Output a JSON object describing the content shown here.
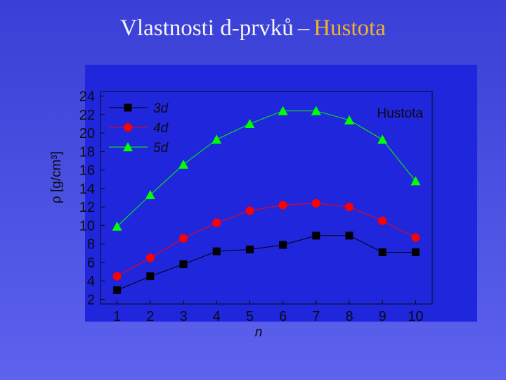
{
  "slide": {
    "title_main": "Vlastnosti d-prvků",
    "title_dash": "–",
    "title_accent": "Hustota"
  },
  "chart_data": {
    "type": "line",
    "title": "Hustota",
    "xlabel": "n",
    "ylabel": "ρ [g/cm³]",
    "x": [
      1,
      2,
      3,
      4,
      5,
      6,
      7,
      8,
      9,
      10
    ],
    "xlim": [
      0.5,
      10.5
    ],
    "ylim": [
      1.5,
      24.5
    ],
    "xticks": [
      1,
      2,
      3,
      4,
      5,
      6,
      7,
      8,
      9,
      10
    ],
    "yticks": [
      2,
      4,
      6,
      8,
      10,
      12,
      14,
      16,
      18,
      20,
      22,
      24
    ],
    "grid": false,
    "legend_position": "top-left",
    "series": [
      {
        "name": "3d",
        "color": "#000000",
        "marker": "square",
        "values": [
          3.0,
          4.5,
          5.8,
          7.2,
          7.4,
          7.9,
          8.9,
          8.9,
          7.1,
          7.1
        ]
      },
      {
        "name": "4d",
        "color": "#ff0000",
        "marker": "circle",
        "values": [
          4.5,
          6.5,
          8.6,
          10.3,
          11.6,
          12.2,
          12.4,
          12.0,
          10.5,
          8.7
        ]
      },
      {
        "name": "5d",
        "color": "#00ff00",
        "marker": "triangle",
        "values": [
          9.9,
          13.3,
          16.6,
          19.3,
          21.0,
          22.4,
          22.4,
          21.4,
          19.3,
          14.8
        ]
      }
    ]
  }
}
